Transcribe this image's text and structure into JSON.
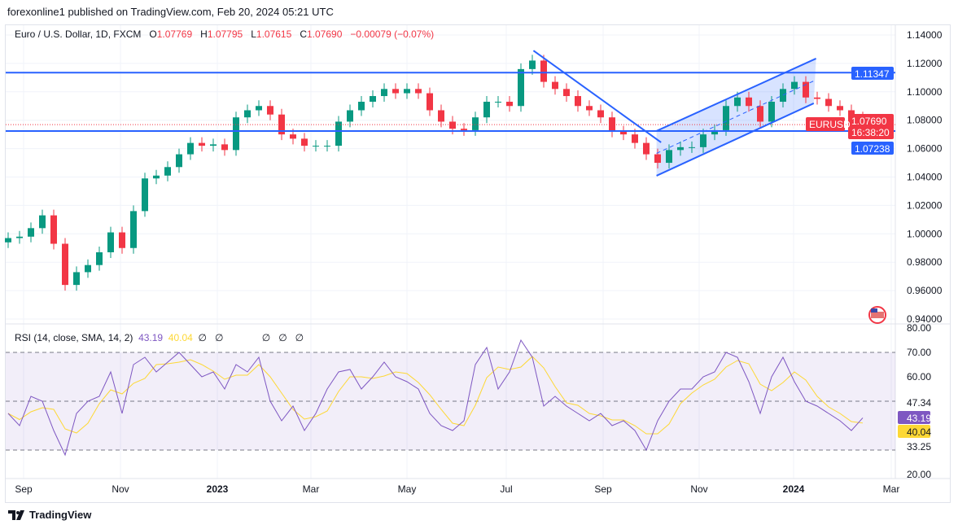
{
  "header": {
    "published": "forexonline1 published on TradingView.com, Feb 20, 2024 05:21 UTC"
  },
  "legend": {
    "symbol": "Euro / U.S. Dollar, 1D, FXCM",
    "o_label": "O",
    "o": "1.07769",
    "h_label": "H",
    "h": "1.07795",
    "l_label": "L",
    "l": "1.07615",
    "c_label": "C",
    "c": "1.07690",
    "change": "−0.00079 (−0.07%)"
  },
  "rsi_legend": {
    "label": "RSI (14, close, SMA, 14, 2)",
    "rsi": "43.19",
    "sma": "40.04",
    "na1": "∅",
    "na2": "∅",
    "na3": "∅",
    "na4": "∅",
    "na5": "∅"
  },
  "footer": {
    "brand": "TradingView"
  },
  "colors": {
    "up": "#089981",
    "down": "#f23645",
    "line": "#2962ff",
    "rsi": "#7e57c2",
    "sma": "#fdd835"
  },
  "chart_data": [
    {
      "type": "candlestick",
      "symbol": "EURUSD",
      "ylim": [
        0.93,
        1.145
      ],
      "y_ticks": [
        "1.14000",
        "1.12000",
        "1.10000",
        "1.08000",
        "1.06000",
        "1.04000",
        "1.02000",
        "1.00000",
        "0.98000",
        "0.96000",
        "0.94000"
      ],
      "x_ticks": [
        "Sep",
        "Nov",
        "2023",
        "Mar",
        "May",
        "Jul",
        "Sep",
        "Nov",
        "2024",
        "Mar"
      ],
      "weekly_closes": [
        0.997,
        0.998,
        1.004,
        1.013,
        0.993,
        0.964,
        0.973,
        0.978,
        0.987,
        1.001,
        0.99,
        1.016,
        1.039,
        1.041,
        1.047,
        1.056,
        1.064,
        1.062,
        1.063,
        1.059,
        1.082,
        1.087,
        1.09,
        1.084,
        1.07,
        1.067,
        1.062,
        1.062,
        1.062,
        1.079,
        1.087,
        1.093,
        1.097,
        1.102,
        1.099,
        1.102,
        1.099,
        1.087,
        1.079,
        1.074,
        1.073,
        1.082,
        1.093,
        1.093,
        1.09,
        1.116,
        1.122,
        1.107,
        1.102,
        1.097,
        1.09,
        1.087,
        1.082,
        1.072,
        1.07,
        1.064,
        1.056,
        1.05,
        1.059,
        1.061,
        1.061,
        1.07,
        1.073,
        1.09,
        1.096,
        1.09,
        1.079,
        1.093,
        1.102,
        1.107,
        1.096,
        1.095,
        1.09,
        1.087,
        1.082,
        1.0769
      ],
      "horizontal_lines": [
        {
          "price": 1.11347,
          "label": "1.11347"
        },
        {
          "price": 1.07238,
          "label": "1.07238"
        }
      ],
      "last_price": {
        "label": "1.07690",
        "countdown": "16:38:20",
        "symbol_tag": "EURUSD",
        "price": 1.0769
      },
      "trendline": [
        [
          46.1,
          1.129
        ],
        [
          57.3,
          1.0644
        ]
      ],
      "channel": {
        "lower": [
          [
            56.9,
            1.0409
          ],
          [
            70.7,
            1.0919
          ]
        ],
        "upper": [
          [
            56.9,
            1.0724
          ],
          [
            70.9,
            1.1234
          ]
        ]
      }
    },
    {
      "type": "line",
      "title": "RSI (14, close, SMA, 14, 2)",
      "ylim": [
        20,
        80
      ],
      "y_ticks": [
        "80.00",
        "70.00",
        "60.00",
        "20.00"
      ],
      "band": [
        30,
        70
      ],
      "levels": [
        70,
        50,
        30
      ],
      "value_labels": {
        "upper": "47.34",
        "rsi": "43.19",
        "sma": "40.04",
        "lower": "33.25"
      },
      "rsi": [
        45,
        40,
        52,
        50,
        38,
        28,
        45,
        50,
        52,
        62,
        45,
        65,
        68,
        62,
        66,
        70,
        65,
        60,
        62,
        55,
        65,
        62,
        68,
        50,
        42,
        48,
        38,
        45,
        55,
        62,
        63,
        55,
        60,
        66,
        60,
        58,
        55,
        45,
        40,
        38,
        42,
        65,
        72,
        55,
        62,
        75,
        68,
        48,
        52,
        48,
        45,
        42,
        45,
        40,
        42,
        38,
        30,
        42,
        50,
        55,
        55,
        60,
        62,
        70,
        68,
        58,
        45,
        60,
        68,
        58,
        50,
        48,
        45,
        42,
        38,
        43.19
      ]
    }
  ]
}
